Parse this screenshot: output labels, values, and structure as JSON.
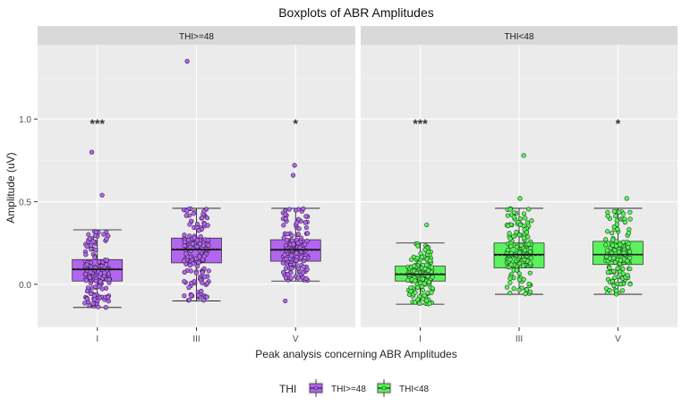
{
  "chart_data": {
    "type": "boxplot",
    "title": "Boxplots of ABR Amplitudes",
    "xlabel": "Peak analysis concerning ABR Amplitudes",
    "ylabel": "Amplitude (uV)",
    "ylim": [
      -0.26,
      1.45
    ],
    "yticks": [
      0.0,
      0.5,
      1.0
    ],
    "ytick_labels": [
      "0.0",
      "0.5",
      "1.0"
    ],
    "categories": [
      "I",
      "III",
      "V"
    ],
    "legend": {
      "title": "THI",
      "position": "bottom",
      "entries": [
        {
          "label": "THI>=48",
          "color": "#b266f0"
        },
        {
          "label": "THI<48",
          "color": "#5cf25c"
        }
      ]
    },
    "panels": [
      {
        "strip": "THI>=48",
        "color": "#b266f0",
        "boxes": [
          {
            "category": "I",
            "q1": 0.02,
            "median": 0.09,
            "mean": 0.095,
            "q3": 0.15,
            "whisker_low": -0.14,
            "whisker_high": 0.33,
            "outliers": [
              0.8,
              0.54
            ],
            "significance": "***"
          },
          {
            "category": "III",
            "q1": 0.13,
            "median": 0.21,
            "mean": 0.215,
            "q3": 0.28,
            "whisker_low": -0.1,
            "whisker_high": 0.46,
            "outliers": [
              1.35
            ],
            "significance": ""
          },
          {
            "category": "V",
            "q1": 0.14,
            "median": 0.21,
            "mean": 0.205,
            "q3": 0.27,
            "whisker_low": 0.02,
            "whisker_high": 0.46,
            "outliers": [
              0.72,
              0.66,
              -0.1
            ],
            "significance": "*"
          }
        ]
      },
      {
        "strip": "THI<48",
        "color": "#5cf25c",
        "boxes": [
          {
            "category": "I",
            "q1": 0.02,
            "median": 0.06,
            "mean": 0.065,
            "q3": 0.11,
            "whisker_low": -0.12,
            "whisker_high": 0.25,
            "outliers": [
              0.36
            ],
            "significance": "***"
          },
          {
            "category": "III",
            "q1": 0.1,
            "median": 0.18,
            "mean": 0.175,
            "q3": 0.25,
            "whisker_low": -0.06,
            "whisker_high": 0.46,
            "outliers": [
              0.78,
              0.52
            ],
            "significance": ""
          },
          {
            "category": "V",
            "q1": 0.12,
            "median": 0.18,
            "mean": 0.18,
            "q3": 0.26,
            "whisker_low": -0.06,
            "whisker_high": 0.46,
            "outliers": [
              0.52
            ],
            "significance": "*"
          }
        ]
      }
    ]
  }
}
